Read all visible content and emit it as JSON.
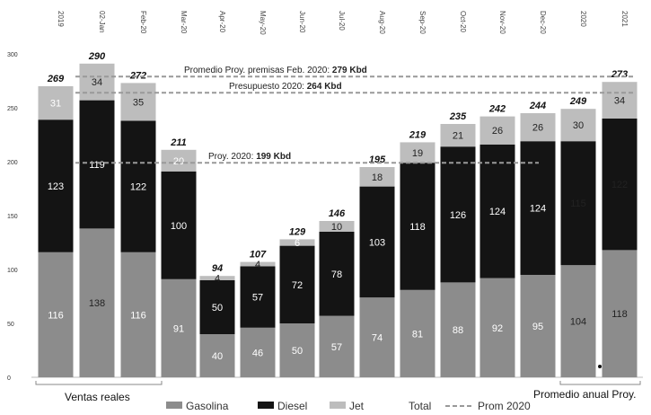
{
  "chart_data": {
    "type": "bar",
    "stacked": true,
    "categories": [
      "2019",
      "02-Jan",
      "Feb-20",
      "Mar-20",
      "Apr-20",
      "May-20",
      "Jun-20",
      "Jul-20",
      "Aug-20",
      "Sep-20",
      "Oct-20",
      "Nov-20",
      "Dec-20",
      "2020",
      "2021"
    ],
    "series": [
      {
        "name": "Gasolina",
        "color": "#8c8c8c",
        "values": [
          116,
          138,
          116,
          91,
          40,
          46,
          50,
          57,
          74,
          81,
          88,
          92,
          95,
          104,
          118
        ]
      },
      {
        "name": "Diesel",
        "color": "#141414",
        "values": [
          123,
          119,
          122,
          100,
          50,
          57,
          72,
          78,
          103,
          118,
          126,
          124,
          124,
          115,
          122
        ]
      },
      {
        "name": "Jet",
        "color": "#bdbdbd",
        "values": [
          31,
          34,
          35,
          20,
          4,
          4,
          6,
          10,
          18,
          19,
          21,
          26,
          26,
          30,
          34
        ]
      }
    ],
    "totals": [
      "269",
      "290",
      "272",
      "211",
      "94",
      "107",
      "129",
      "146",
      "195",
      "219",
      "235",
      "242",
      "244",
      "249",
      "273"
    ],
    "segment_label_colors": [
      [
        "#ffffff",
        "#ffffff",
        "#ffffff"
      ],
      [
        "#222222",
        "#ffffff",
        "#222222"
      ],
      [
        "#ffffff",
        "#ffffff",
        "#222222"
      ],
      [
        "#ffffff",
        "#ffffff",
        "#ffffff"
      ],
      [
        "#ffffff",
        "#ffffff",
        "#222222"
      ],
      [
        "#ffffff",
        "#ffffff",
        "#222222"
      ],
      [
        "#ffffff",
        "#ffffff",
        "#ffffff"
      ],
      [
        "#ffffff",
        "#ffffff",
        "#222222"
      ],
      [
        "#ffffff",
        "#ffffff",
        "#222222"
      ],
      [
        "#ffffff",
        "#ffffff",
        "#222222"
      ],
      [
        "#ffffff",
        "#ffffff",
        "#222222"
      ],
      [
        "#ffffff",
        "#ffffff",
        "#222222"
      ],
      [
        "#ffffff",
        "#ffffff",
        "#222222"
      ],
      [
        "#222222",
        "#222222",
        "#222222"
      ],
      [
        "#222222",
        "#222222",
        "#222222"
      ]
    ],
    "yticks": [
      "0",
      "50",
      "100",
      "150",
      "200",
      "250",
      "300"
    ],
    "ylim": [
      0,
      300
    ],
    "reference_lines": [
      {
        "label": "Promedio Proy. premisas Feb. 2020:",
        "value_label": "279 Kbd",
        "value": 279
      },
      {
        "label": "Presupuesto 2020:",
        "value_label": "264 Kbd",
        "value": 264
      },
      {
        "label": "Proy. 2020:",
        "value_label": "199 Kbd",
        "value": 199
      }
    ],
    "groups": [
      "Ventas reales",
      "Promedio anual Proy."
    ],
    "legend": {
      "total_label": "Total",
      "prom_label": "Prom 2020"
    }
  }
}
